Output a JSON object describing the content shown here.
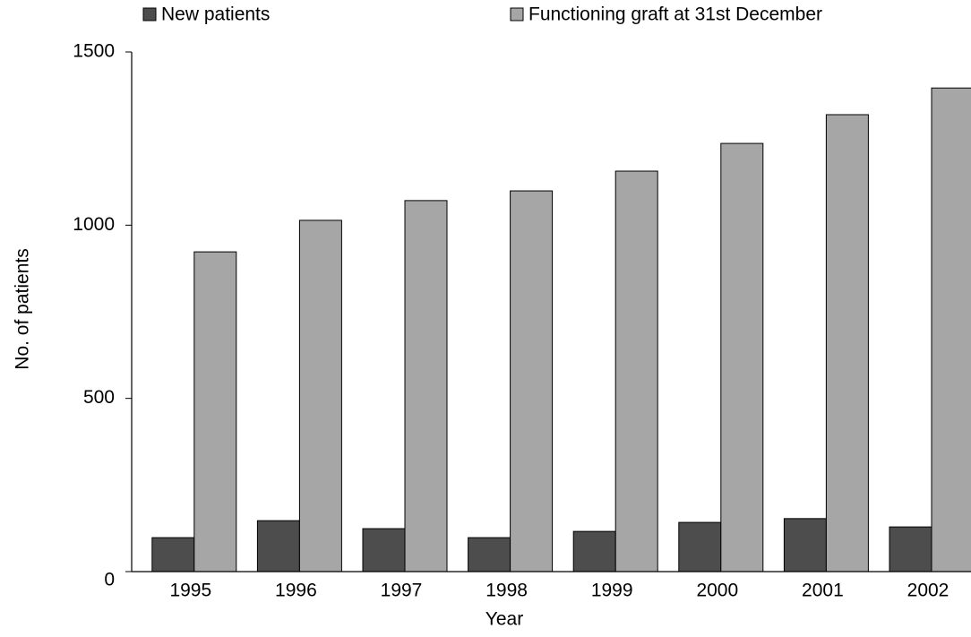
{
  "chart_data": {
    "type": "bar",
    "x_label": "Year",
    "y_label": "No. of patients",
    "categories": [
      "1995",
      "1996",
      "1997",
      "1998",
      "1999",
      "2000",
      "2001",
      "2002"
    ],
    "series": [
      {
        "name": "New patients",
        "color": "#4d4d4d",
        "values": [
          98,
          147,
          124,
          98,
          116,
          142,
          153,
          129
        ]
      },
      {
        "name": "Functioning graft at 31st December",
        "color": "#a6a6a6",
        "values": [
          923,
          1014,
          1071,
          1099,
          1156,
          1236,
          1319,
          1396
        ]
      }
    ],
    "ylim": [
      0,
      1500
    ],
    "yticks": [
      0,
      500,
      1000,
      1500
    ],
    "grid": false
  }
}
